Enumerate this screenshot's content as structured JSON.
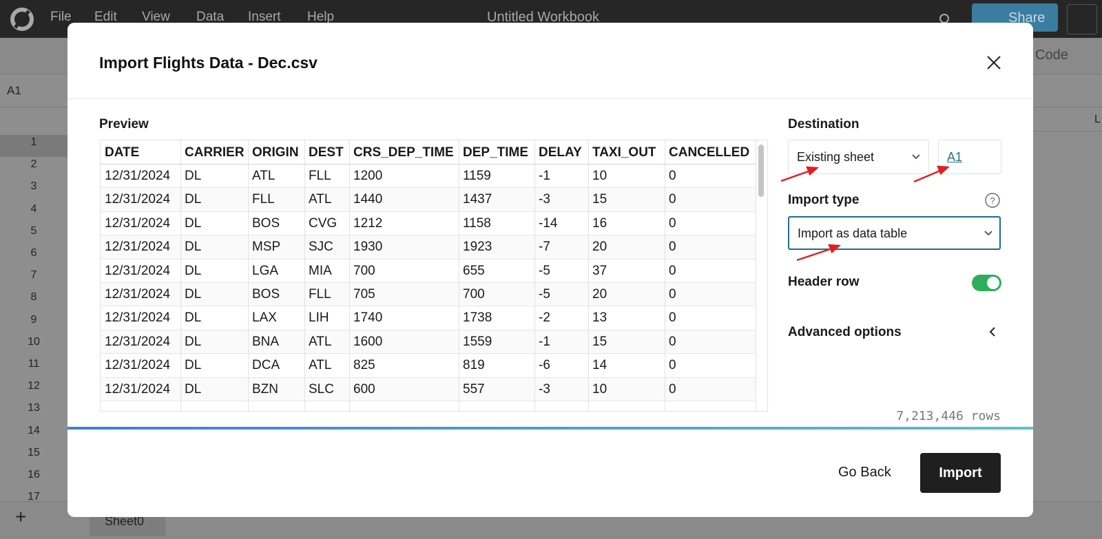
{
  "menu": {
    "items": [
      "File",
      "Edit",
      "View",
      "Data",
      "Insert",
      "Help"
    ],
    "title": "Untitled Workbook",
    "share": "Share"
  },
  "toolbar": {
    "code": "Code",
    "cell_ref": "A1"
  },
  "grid": {
    "column_header": "L",
    "row_numbers": [
      1,
      2,
      3,
      4,
      5,
      6,
      7,
      8,
      9,
      10,
      11,
      12,
      13,
      14,
      15,
      16,
      17
    ]
  },
  "sheet_tabs": [
    "Sheet0"
  ],
  "dialog": {
    "title": "Import Flights Data - Dec.csv",
    "preview": {
      "label": "Preview",
      "columns": [
        "DATE",
        "CARRIER",
        "ORIGIN",
        "DEST",
        "CRS_DEP_TIME",
        "DEP_TIME",
        "DELAY",
        "TAXI_OUT",
        "CANCELLED"
      ],
      "rows": [
        [
          "12/31/2024",
          "DL",
          "ATL",
          "FLL",
          "1200",
          "1159",
          "-1",
          "10",
          "0"
        ],
        [
          "12/31/2024",
          "DL",
          "FLL",
          "ATL",
          "1440",
          "1437",
          "-3",
          "15",
          "0"
        ],
        [
          "12/31/2024",
          "DL",
          "BOS",
          "CVG",
          "1212",
          "1158",
          "-14",
          "16",
          "0"
        ],
        [
          "12/31/2024",
          "DL",
          "MSP",
          "SJC",
          "1930",
          "1923",
          "-7",
          "20",
          "0"
        ],
        [
          "12/31/2024",
          "DL",
          "LGA",
          "MIA",
          "700",
          "655",
          "-5",
          "37",
          "0"
        ],
        [
          "12/31/2024",
          "DL",
          "BOS",
          "FLL",
          "705",
          "700",
          "-5",
          "20",
          "0"
        ],
        [
          "12/31/2024",
          "DL",
          "LAX",
          "LIH",
          "1740",
          "1738",
          "-2",
          "13",
          "0"
        ],
        [
          "12/31/2024",
          "DL",
          "BNA",
          "ATL",
          "1600",
          "1559",
          "-1",
          "15",
          "0"
        ],
        [
          "12/31/2024",
          "DL",
          "DCA",
          "ATL",
          "825",
          "819",
          "-6",
          "14",
          "0"
        ],
        [
          "12/31/2024",
          "DL",
          "BZN",
          "SLC",
          "600",
          "557",
          "-3",
          "10",
          "0"
        ]
      ]
    },
    "destination": {
      "label": "Destination",
      "sheet": "Existing sheet",
      "cell": "A1"
    },
    "import_type": {
      "label": "Import type",
      "value": "Import as data table"
    },
    "header_row": {
      "label": "Header row",
      "enabled": true
    },
    "advanced_options": "Advanced options",
    "row_count": "7,213,446 rows",
    "buttons": {
      "back": "Go Back",
      "import": "Import"
    }
  }
}
